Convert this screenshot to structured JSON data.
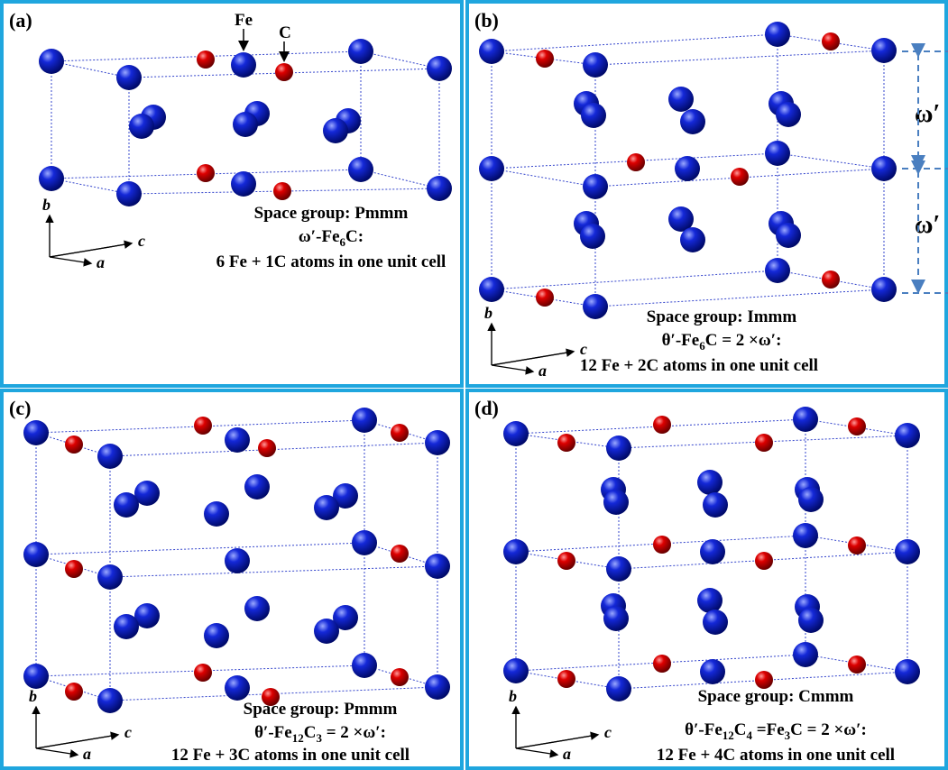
{
  "panels": [
    {
      "tag": "(a)",
      "atom_labels": [
        "Fe",
        "C"
      ],
      "space_group": "Space group: Pmmm",
      "formula": [
        "ω′-Fe",
        "6",
        "C:"
      ],
      "atoms": "6 Fe + 1C atoms in one unit cell",
      "axes": [
        "b",
        "c",
        "a"
      ]
    },
    {
      "tag": "(b)",
      "space_group": "Space group: Immm",
      "formula": [
        "θ′-Fe",
        "6",
        "C = 2 ×ω′:"
      ],
      "atoms": "12 Fe + 2C atoms in one unit cell",
      "axes": [
        "b",
        "c",
        "a"
      ],
      "spacing_labels": [
        "ω′",
        "ω′"
      ]
    },
    {
      "tag": "(c)",
      "space_group": "Space group: Pmmm",
      "formula": [
        "θ′-Fe",
        "12",
        "C",
        "3",
        " = 2 ×ω′:"
      ],
      "atoms": "12 Fe + 3C atoms in one unit cell",
      "axes": [
        "b",
        "c",
        "a"
      ]
    },
    {
      "tag": "(d)",
      "space_group": "Space group: Cmmm",
      "formula": [
        "θ′-Fe",
        "12",
        "C",
        "4",
        " =Fe",
        "3",
        "C = 2 ×ω′:"
      ],
      "atoms": "12 Fe + 4C atoms in one unit cell",
      "axes": [
        "b",
        "c",
        "a"
      ]
    }
  ]
}
